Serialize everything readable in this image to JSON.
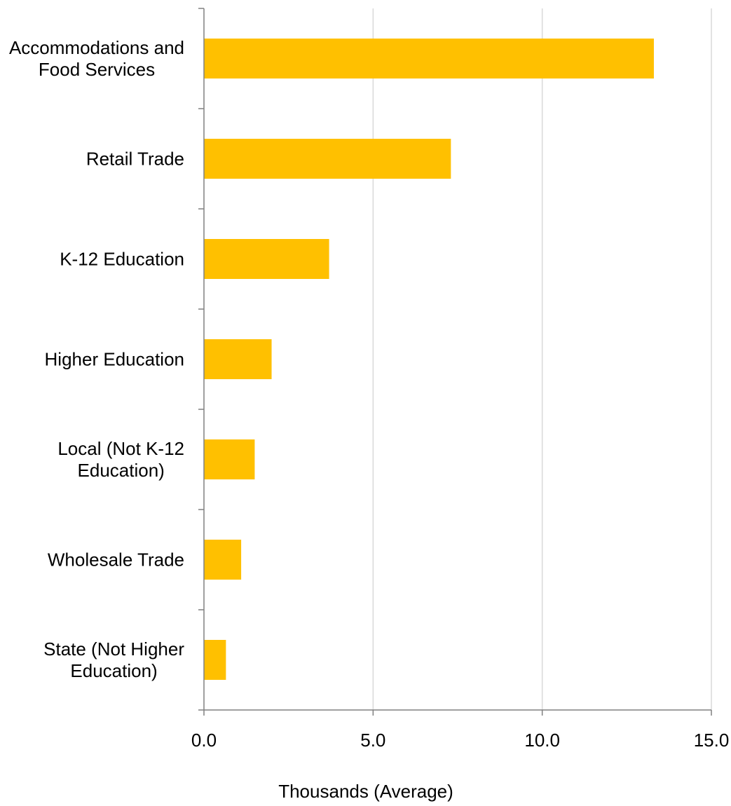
{
  "chart_data": {
    "type": "bar",
    "orientation": "horizontal",
    "title": "",
    "xlabel": "Thousands  (Average)",
    "ylabel": "",
    "categories": [
      [
        "Accommodations and",
        "Food Services"
      ],
      [
        "Retail Trade"
      ],
      [
        "K-12 Education"
      ],
      [
        "Higher Education"
      ],
      [
        "Local (Not K-12",
        "Education)"
      ],
      [
        "Wholesale Trade"
      ],
      [
        "State (Not Higher",
        "Education)"
      ]
    ],
    "values": [
      13.3,
      7.3,
      3.7,
      2.0,
      1.5,
      1.1,
      0.65
    ],
    "xlim": [
      0,
      15
    ],
    "xticks": [
      0,
      5,
      10,
      15
    ],
    "xtick_labels": [
      "0.0",
      "5.0",
      "10.0",
      "15.0"
    ],
    "grid": "vertical",
    "bar_color": "#FFC000",
    "grid_color": "#D9D9D9",
    "axis_color": "#808080"
  }
}
